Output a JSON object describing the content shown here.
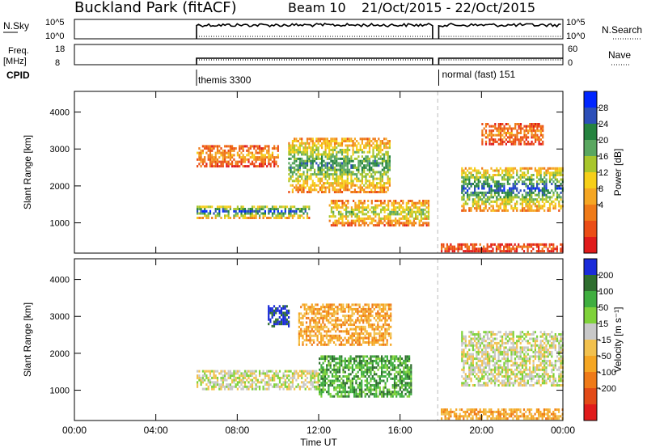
{
  "header": {
    "station": "Buckland Park (fitACF)",
    "beam": "Beam 10",
    "date_range": "21/Oct/2015 - 22/Oct/2015"
  },
  "top_panels": {
    "nsky_label": "N.Sky",
    "nsky_ticks": [
      "10^5",
      "10^0"
    ],
    "nsearch_label": "N.Search",
    "nsearch_ticks": [
      "10^5",
      "10^0"
    ],
    "freq_label": "Freq.",
    "freq_unit": "[MHz]",
    "freq_ticks": [
      "18",
      "8"
    ],
    "nave_label": "Nave",
    "nave_ticks": [
      "60",
      "0"
    ],
    "cpid_label": "CPID",
    "cpid_modes": [
      {
        "name": "themis 3300",
        "start_hour": 6.0,
        "end_hour": 17.6
      },
      {
        "name": "normal (fast) 151",
        "start_hour": 17.9,
        "end_hour": 24.0
      }
    ]
  },
  "x_axis": {
    "label": "Time UT",
    "ticks": [
      "00:00",
      "04:00",
      "08:00",
      "12:00",
      "16:00",
      "20:00",
      "00:00"
    ],
    "range_hours": [
      0,
      24
    ]
  },
  "chart_data": [
    {
      "type": "heatmap",
      "variable": "Power",
      "ylabel": "Slant Range [km]",
      "yticks": [
        1000,
        2000,
        3000,
        4000
      ],
      "ylim": [
        180,
        4560
      ],
      "xlim_hours": [
        0,
        24
      ],
      "colorbar": {
        "label": "Power [dB]",
        "ticks": [
          "28",
          "24",
          "20",
          "16",
          "12",
          "8",
          "4"
        ],
        "colors": [
          "#0026ff",
          "#2c4fb8",
          "#25833f",
          "#5aa760",
          "#a8c62c",
          "#f6cf19",
          "#f5a623",
          "#ef7a18",
          "#eb4d16",
          "#e01b1b"
        ]
      },
      "features": [
        {
          "start_hour": 6.0,
          "end_hour": 11.5,
          "range_km": [
            1100,
            1450
          ],
          "level": 0.9
        },
        {
          "start_hour": 6.0,
          "end_hour": 10.0,
          "range_km": [
            2500,
            3100
          ],
          "level": 0.35
        },
        {
          "start_hour": 10.5,
          "end_hour": 15.5,
          "range_km": [
            1800,
            3300
          ],
          "level": 0.75
        },
        {
          "start_hour": 12.5,
          "end_hour": 17.4,
          "range_km": [
            900,
            1600
          ],
          "level": 0.6
        },
        {
          "start_hour": 19.0,
          "end_hour": 24.0,
          "range_km": [
            1300,
            2500
          ],
          "level": 0.85
        },
        {
          "start_hour": 20.0,
          "end_hour": 23.0,
          "range_km": [
            3100,
            3700
          ],
          "level": 0.3
        },
        {
          "start_hour": 18.0,
          "end_hour": 24.0,
          "range_km": [
            200,
            400
          ],
          "level": 0.2
        }
      ]
    },
    {
      "type": "heatmap",
      "variable": "Velocity",
      "ylabel": "Slant Range [km]",
      "yticks": [
        1000,
        2000,
        3000,
        4000
      ],
      "ylim": [
        180,
        4560
      ],
      "xlim_hours": [
        0,
        24
      ],
      "colorbar": {
        "label": "Velocity [m s⁻¹]",
        "ticks": [
          "200",
          "100",
          "50",
          "15",
          "-15",
          "-50",
          "-100",
          "-200"
        ],
        "colors": [
          "#1a2bd9",
          "#2f6e2f",
          "#3fae3f",
          "#7fd23a",
          "#c8c8c8",
          "#f2c14e",
          "#f5a623",
          "#ef7a18",
          "#e24a17",
          "#e01b1b"
        ]
      },
      "features": [
        {
          "start_hour": 6.0,
          "end_hour": 12.0,
          "range_km": [
            1000,
            1500
          ],
          "level": "gray"
        },
        {
          "start_hour": 9.5,
          "end_hour": 10.5,
          "range_km": [
            2700,
            3300
          ],
          "level": "blue"
        },
        {
          "start_hour": 12.0,
          "end_hour": 16.5,
          "range_km": [
            800,
            1900
          ],
          "level": "green"
        },
        {
          "start_hour": 11.0,
          "end_hour": 15.5,
          "range_km": [
            2200,
            3300
          ],
          "level": "orange"
        },
        {
          "start_hour": 19.0,
          "end_hour": 24.0,
          "range_km": [
            1100,
            2600
          ],
          "level": "gray"
        },
        {
          "start_hour": 18.0,
          "end_hour": 24.0,
          "range_km": [
            200,
            500
          ],
          "level": "orange"
        }
      ]
    }
  ],
  "colors": {
    "frame": "#000000",
    "dashed_line": "#bbbbbb"
  }
}
